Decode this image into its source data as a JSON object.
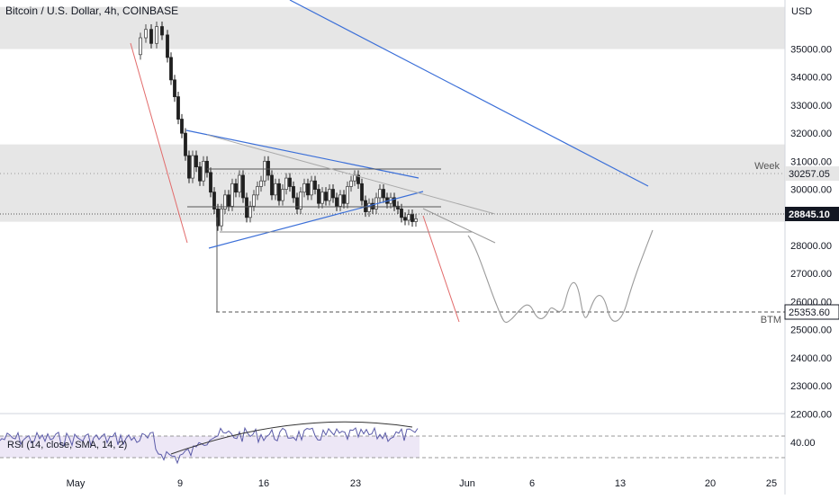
{
  "header": {
    "title": "Bitcoin / U.S. Dollar, 4h, COINBASE",
    "currency": "USD"
  },
  "colors": {
    "up_candle": "#4a4a4a",
    "down_candle": "#1f1f1f",
    "zone_fill": "#e6e6e6",
    "trendline_blue": "#3b6fd8",
    "trendline_red": "#e26b6b",
    "projection": "#9a9a9a",
    "rsi_line": "#5a5aa8",
    "rsi_band": "#ede7f6",
    "last_price_bg": "#131722"
  },
  "chart_data": {
    "type": "candlestick",
    "title": "Bitcoin / U.S. Dollar, 4h, COINBASE",
    "ylabel": "USD",
    "ylim": [
      21500,
      36500
    ],
    "x_axis_labels": [
      "May",
      "9",
      "16",
      "23",
      "Jun",
      "6",
      "13",
      "20",
      "25"
    ],
    "y_ticks": [
      22000,
      23000,
      24000,
      25000,
      26000,
      27000,
      28000,
      29000,
      30000,
      31000,
      32000,
      33000,
      34000,
      35000
    ],
    "price_labels": {
      "last_price": "28845.10",
      "week_level": "30257.05",
      "btm_level": "25353.60"
    },
    "zone_labels": {
      "week": "Week",
      "btm": "BTM"
    },
    "zones": [
      {
        "from": 35000,
        "to": 36500
      },
      {
        "from": 28845,
        "to": 31600
      }
    ],
    "rsi": {
      "label": "RSI (14, close, SMA, 14, 2)",
      "value_label": "40.00",
      "bands": [
        30,
        70
      ],
      "ylim": [
        15,
        85
      ]
    }
  }
}
